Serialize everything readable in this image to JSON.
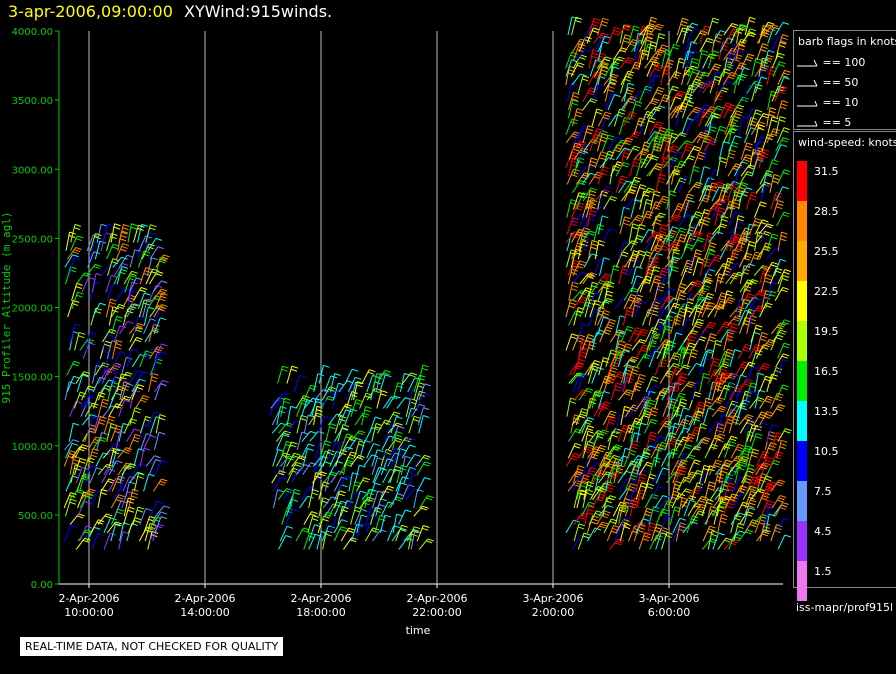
{
  "header": {
    "datetime": "3-apr-2006,09:00:00",
    "name": "XYWind:915winds."
  },
  "legend": {
    "barb_title": "barb flags in knots",
    "barbs": [
      {
        "label": "== 100",
        "icon": "pennant-barb-icon"
      },
      {
        "label": "== 50",
        "icon": "pennant-barb-icon"
      },
      {
        "label": "== 10",
        "icon": "full-barb-icon"
      },
      {
        "label": "== 5",
        "icon": "half-barb-icon"
      }
    ],
    "speed_title": "wind-speed: knots",
    "speeds": [
      {
        "label": "31.5",
        "color": "#ff0000"
      },
      {
        "label": "28.5",
        "color": "#ff8800"
      },
      {
        "label": "25.5",
        "color": "#ffaa00"
      },
      {
        "label": "22.5",
        "color": "#ffff00"
      },
      {
        "label": "19.5",
        "color": "#aaff00"
      },
      {
        "label": "16.5",
        "color": "#00ee00"
      },
      {
        "label": "13.5",
        "color": "#00ffff"
      },
      {
        "label": "10.5",
        "color": "#0000ff"
      },
      {
        "label": "7.5",
        "color": "#6699ff"
      },
      {
        "label": "4.5",
        "color": "#9933ff"
      },
      {
        "label": "1.5",
        "color": "#ee77ee"
      }
    ],
    "source": "iss-mapr/prof915l"
  },
  "note": "REAL-TIME DATA, NOT CHECKED FOR QUALITY",
  "chart_data": {
    "type": "scatter",
    "title": "",
    "xlabel": "time",
    "ylabel": "915 Profiler Altitude (m agl)",
    "ylim": [
      0,
      4000
    ],
    "y_ticks": [
      "0.00",
      "500.00",
      "1000.00",
      "1500.00",
      "2000.00",
      "2500.00",
      "3000.00",
      "3500.00",
      "4000.00"
    ],
    "x_ticks": [
      {
        "date": "2-Apr-2006",
        "time": "10:00:00"
      },
      {
        "date": "2-Apr-2006",
        "time": "14:00:00"
      },
      {
        "date": "2-Apr-2006",
        "time": "18:00:00"
      },
      {
        "date": "2-Apr-2006",
        "time": "22:00:00"
      },
      {
        "date": "3-Apr-2006",
        "time": "2:00:00"
      },
      {
        "date": "3-Apr-2006",
        "time": "6:00:00"
      }
    ],
    "xlim_hours": [
      9,
      12.3
    ],
    "vertical_grid": true,
    "series": [
      {
        "hour_from": 9.2,
        "hour_to": 12.3,
        "alt_min": 250,
        "alt_max": 2500,
        "speeds": [
          10,
          12,
          7,
          16,
          19,
          22,
          4,
          28
        ]
      },
      {
        "hour_from": 16.3,
        "hour_to": 21.5,
        "alt_min": 250,
        "alt_max": 1500,
        "speeds": [
          10,
          12,
          7,
          13,
          16,
          19,
          22
        ]
      },
      {
        "hour_from": 26.5,
        "hour_to": 33.8,
        "alt_min": 250,
        "alt_max": 4000,
        "speeds": [
          31,
          28,
          25,
          22,
          19,
          16,
          13,
          10
        ]
      }
    ]
  }
}
